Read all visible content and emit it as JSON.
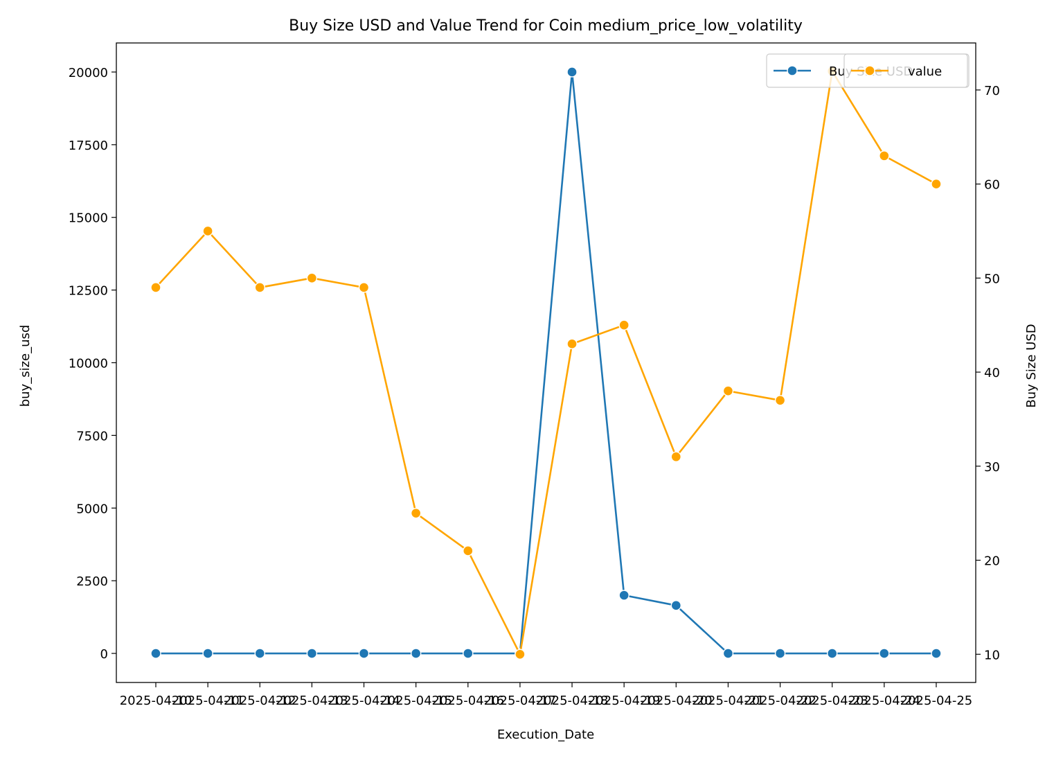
{
  "chart_data": {
    "type": "line",
    "title": "Buy Size USD and Value Trend for Coin medium_price_low_volatility",
    "xlabel": "Execution_Date",
    "ylabel_left": "buy_size_usd",
    "ylabel_right": "Buy Size USD",
    "x_tick_labels": [
      "2025-04-10",
      "2025-04-11",
      "2025-04-12",
      "2025-04-13",
      "2025-04-14",
      "2025-04-15",
      "2025-04-16",
      "2025-04-17",
      "2025-04-18",
      "2025-04-19",
      "2025-04-20",
      "2025-04-21",
      "2025-04-22",
      "2025-04-23",
      "2025-04-24",
      "2025-04-25"
    ],
    "left_axis": {
      "ylim": [
        -1000,
        21000
      ],
      "ticks": [
        0,
        2500,
        5000,
        7500,
        10000,
        12500,
        15000,
        17500,
        20000
      ]
    },
    "right_axis": {
      "ylim": [
        7,
        75
      ],
      "ticks": [
        10,
        20,
        30,
        40,
        50,
        60,
        70
      ]
    },
    "series": [
      {
        "name": "Buy Size USD",
        "axis": "left",
        "color": "#1f77b4",
        "values": [
          0,
          0,
          0,
          0,
          0,
          0,
          0,
          0,
          20000,
          2000,
          1650,
          0,
          0,
          0,
          0,
          0
        ]
      },
      {
        "name": "value",
        "axis": "right",
        "color": "#ffa500",
        "values": [
          49,
          55,
          49,
          50,
          49,
          25,
          21,
          10,
          43,
          45,
          31,
          38,
          37,
          72,
          63,
          60
        ]
      }
    ],
    "legend_position": "upper right",
    "grid": false
  }
}
